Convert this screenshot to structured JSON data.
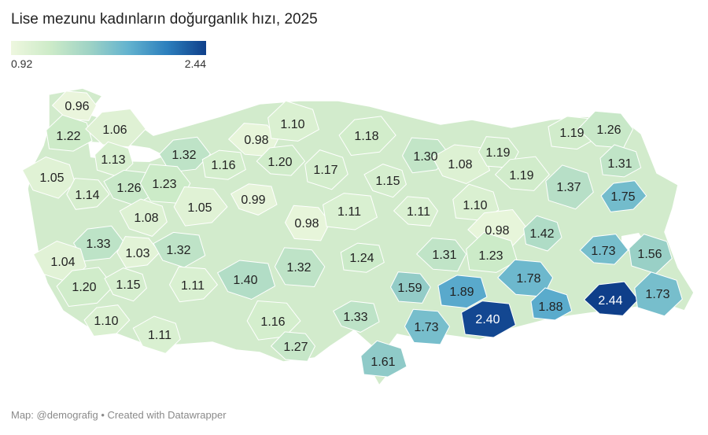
{
  "title": "Lise mezunu kadınların doğurganlık hızı, 2025",
  "legend": {
    "min_label": "0.92",
    "max_label": "2.44",
    "min": 0.92,
    "max": 2.44
  },
  "footer": "Map: @demografig • Created with Datawrapper",
  "colors": {
    "water": "#ffffff",
    "low": "#eef7df",
    "high": "#0f3f8a"
  },
  "regions": [
    {
      "value": "0.96"
    },
    {
      "value": "1.22"
    },
    {
      "value": "1.06"
    },
    {
      "value": "1.13"
    },
    {
      "value": "1.32"
    },
    {
      "value": "1.05"
    },
    {
      "value": "1.14"
    },
    {
      "value": "1.26"
    },
    {
      "value": "1.23"
    },
    {
      "value": "1.16"
    },
    {
      "value": "0.98"
    },
    {
      "value": "1.10"
    },
    {
      "value": "1.20"
    },
    {
      "value": "1.17"
    },
    {
      "value": "1.18"
    },
    {
      "value": "1.15"
    },
    {
      "value": "1.30"
    },
    {
      "value": "1.08"
    },
    {
      "value": "1.19"
    },
    {
      "value": "1.19"
    },
    {
      "value": "1.26"
    },
    {
      "value": "1.31"
    },
    {
      "value": "1.19"
    },
    {
      "value": "1.37"
    },
    {
      "value": "1.75"
    },
    {
      "value": "1.08"
    },
    {
      "value": "1.05"
    },
    {
      "value": "0.99"
    },
    {
      "value": "0.98"
    },
    {
      "value": "1.11"
    },
    {
      "value": "1.11"
    },
    {
      "value": "1.10"
    },
    {
      "value": "0.98"
    },
    {
      "value": "1.42"
    },
    {
      "value": "1.33"
    },
    {
      "value": "1.04"
    },
    {
      "value": "1.03"
    },
    {
      "value": "1.32"
    },
    {
      "value": "1.32"
    },
    {
      "value": "1.24"
    },
    {
      "value": "1.31"
    },
    {
      "value": "1.23"
    },
    {
      "value": "1.73"
    },
    {
      "value": "1.56"
    },
    {
      "value": "1.20"
    },
    {
      "value": "1.15"
    },
    {
      "value": "1.11"
    },
    {
      "value": "1.40"
    },
    {
      "value": "1.59"
    },
    {
      "value": "1.89"
    },
    {
      "value": "1.78"
    },
    {
      "value": "1.88"
    },
    {
      "value": "2.44"
    },
    {
      "value": "1.73"
    },
    {
      "value": "1.10"
    },
    {
      "value": "1.11"
    },
    {
      "value": "1.16"
    },
    {
      "value": "1.33"
    },
    {
      "value": "1.73"
    },
    {
      "value": "2.40"
    },
    {
      "value": "1.27"
    },
    {
      "value": "1.61"
    }
  ]
}
